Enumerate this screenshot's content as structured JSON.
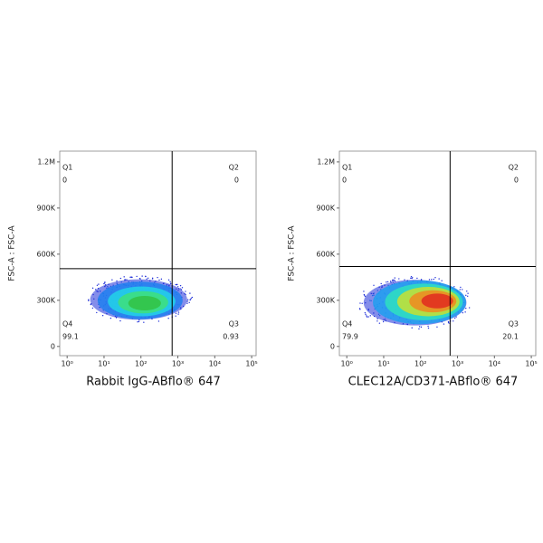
{
  "chart_data": [
    {
      "type": "density",
      "x_label": "Rabbit IgG-ABflo® 647",
      "y_label": "FSC-A : FSC-A",
      "log_x": true,
      "xlim": [
        0.63,
        132000
      ],
      "xticks": [
        {
          "value": 1,
          "label": "10⁰"
        },
        {
          "value": 10,
          "label": "10¹"
        },
        {
          "value": 100,
          "label": "10²"
        },
        {
          "value": 1000,
          "label": "10³"
        },
        {
          "value": 10000,
          "label": "10⁴"
        },
        {
          "value": 100000,
          "label": "10⁵"
        }
      ],
      "ylim": [
        -60000,
        1270000
      ],
      "yticks": [
        0,
        {
          "value": 300000,
          "label": "300K"
        },
        {
          "value": 600000,
          "label": "600K"
        },
        {
          "value": 900000,
          "label": "900K"
        },
        {
          "value": 1200000,
          "label": "1.2M"
        }
      ],
      "gate": {
        "x": 700,
        "y": 506000
      },
      "quadrants": [
        {
          "name": "Q1",
          "value": 0
        },
        {
          "name": "Q2",
          "value": 0
        },
        {
          "name": "Q3",
          "value": 0.93
        },
        {
          "name": "Q4",
          "value": 99.1
        }
      ],
      "cloud": {
        "x": [
          3,
          2500
        ],
        "y": [
          150000,
          460000
        ],
        "peak": [
          150,
          270000
        ],
        "colors": [
          "#1f2fd8",
          "#1f7ff0",
          "#22d4e8",
          "#3ee07a",
          "#33c243"
        ]
      }
    },
    {
      "type": "density",
      "x_label": "CLEC12A/CD371-ABflo® 647",
      "y_label": "FSC-A : FSC-A",
      "log_x": true,
      "xlim": [
        0.63,
        132000
      ],
      "xticks": [
        {
          "value": 1,
          "label": "10⁰"
        },
        {
          "value": 10,
          "label": "10¹"
        },
        {
          "value": 100,
          "label": "10²"
        },
        {
          "value": 1000,
          "label": "10³"
        },
        {
          "value": 10000,
          "label": "10⁴"
        },
        {
          "value": 100000,
          "label": "10⁵"
        }
      ],
      "ylim": [
        -60000,
        1270000
      ],
      "yticks": [
        0,
        {
          "value": 300000,
          "label": "300K"
        },
        {
          "value": 600000,
          "label": "600K"
        },
        {
          "value": 900000,
          "label": "900K"
        },
        {
          "value": 1200000,
          "label": "1.2M"
        }
      ],
      "gate": {
        "x": 630,
        "y": 520000
      },
      "quadrants": [
        {
          "name": "Q1",
          "value": 0
        },
        {
          "name": "Q2",
          "value": 0
        },
        {
          "name": "Q3",
          "value": 20.1
        },
        {
          "name": "Q4",
          "value": 79.9
        }
      ],
      "cloud": {
        "x": [
          2,
          2500
        ],
        "y": [
          110000,
          460000
        ],
        "peak": [
          500,
          300000
        ],
        "colors": [
          "#1f2fd8",
          "#1f9ff0",
          "#2ee0c0",
          "#c8e030",
          "#f08a20",
          "#e02a20"
        ]
      }
    }
  ]
}
